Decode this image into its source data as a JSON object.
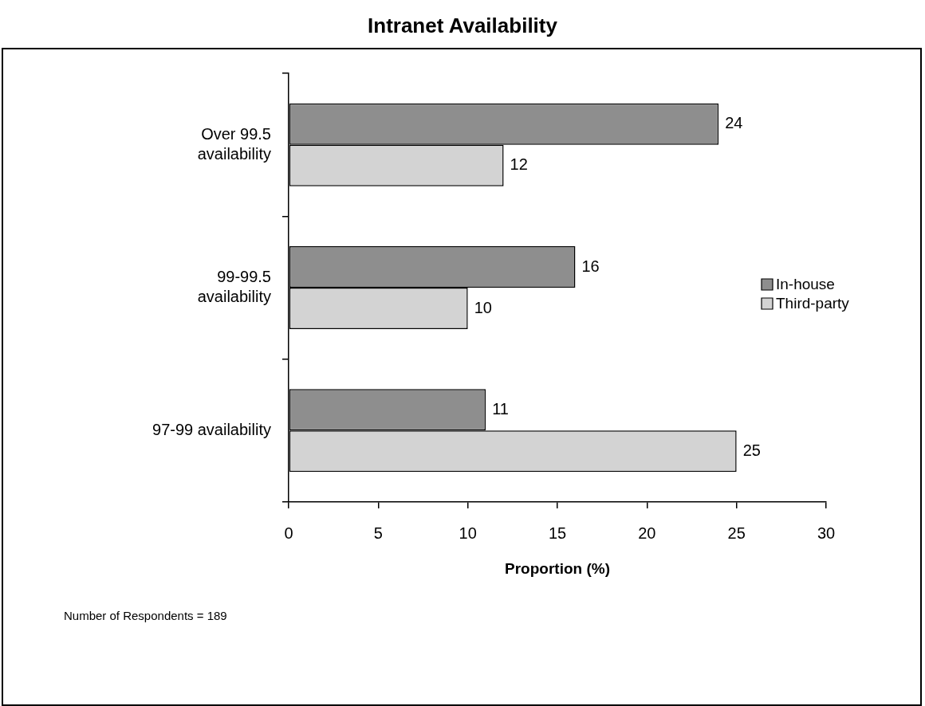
{
  "chart_data": {
    "type": "bar",
    "orientation": "horizontal",
    "title": "Intranet Availability",
    "xlabel": "Proportion (%)",
    "categories": [
      "Over 99.5 availability",
      "99-99.5 availability",
      "97-99 availability"
    ],
    "series": [
      {
        "name": "In-house",
        "color": "#8e8e8e",
        "values": [
          24,
          16,
          11
        ]
      },
      {
        "name": "Third-party",
        "color": "#d3d3d3",
        "values": [
          12,
          10,
          25
        ]
      }
    ],
    "xlim": [
      0,
      30
    ],
    "xticks": [
      0,
      5,
      10,
      15,
      20,
      25,
      30
    ],
    "grid": false,
    "legend": "right",
    "data_labels": true,
    "annotations": [
      "Number of Respondents = 189"
    ]
  }
}
